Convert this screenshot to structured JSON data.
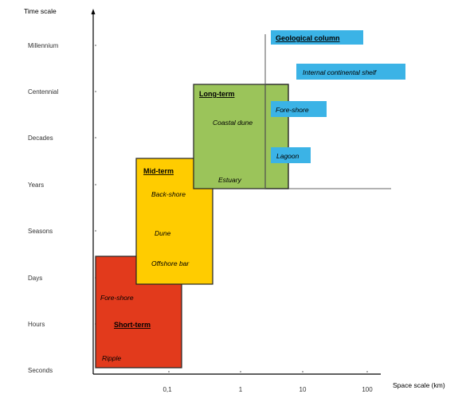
{
  "axes": {
    "y_title": "Time scale",
    "x_title": "Space scale (km)",
    "y_ticks": [
      "Millennium",
      "Centennial",
      "Decades",
      "Years",
      "Seasons",
      "Days",
      "Hours",
      "Seconds"
    ],
    "x_ticks": [
      "0,1",
      "1",
      "10",
      "100"
    ]
  },
  "boxes": {
    "short_term": {
      "title": "Short-term",
      "items": [
        "Fore-shore",
        "Ripple"
      ],
      "color": "#e23a1c"
    },
    "mid_term": {
      "title": "Mid-term",
      "items": [
        "Back-shore",
        "Dune",
        "Offshore bar"
      ],
      "color": "#ffcc00"
    },
    "long_term": {
      "title": "Long-term",
      "items": [
        "Coastal dune",
        "Estuary"
      ],
      "color": "#9bc45a"
    }
  },
  "geological": {
    "title": "Geological column",
    "items": [
      "Internal continental shelf",
      "Fore-shore",
      "Lagoon"
    ],
    "color": "#3bb3e6"
  }
}
